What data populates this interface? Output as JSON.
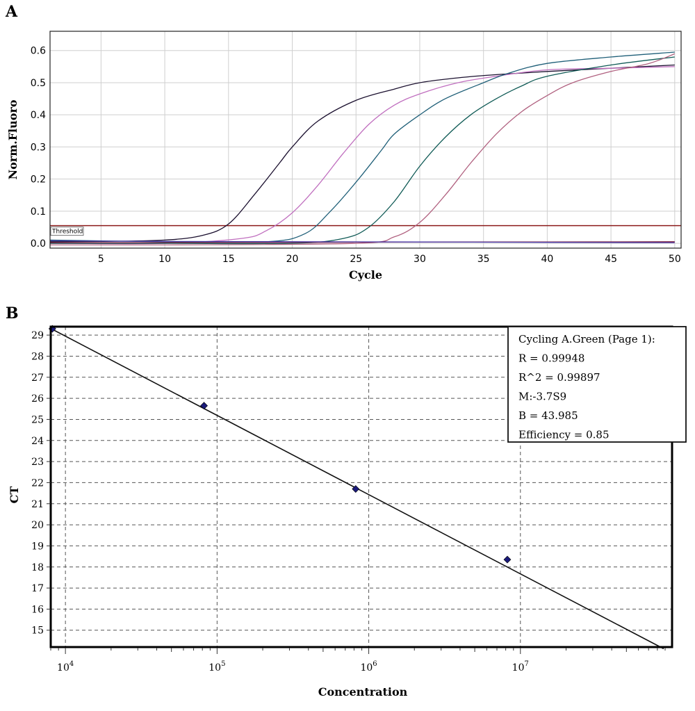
{
  "chart_data": [
    {
      "panel": "A",
      "type": "line",
      "xlabel": "Cycle",
      "ylabel": "Norm.Fluoro",
      "xlim": [
        1,
        50.5
      ],
      "ylim": [
        -0.015,
        0.66
      ],
      "xticks": [
        5,
        10,
        15,
        20,
        25,
        30,
        35,
        40,
        45,
        50
      ],
      "yticks": [
        0.0,
        0.1,
        0.2,
        0.3,
        0.4,
        0.5,
        0.6
      ],
      "ytick_labels": [
        "0.0",
        "0.1",
        "0.2",
        "0.3",
        "0.4",
        "0.5",
        "0.6"
      ],
      "grid": true,
      "threshold": {
        "label": "Threshold",
        "value": 0.055,
        "color": "#8b1a1a"
      },
      "series": [
        {
          "color": "#1a0f2e",
          "x": [
            1,
            5,
            10,
            13,
            15,
            17,
            19,
            20,
            22,
            25,
            28,
            30,
            33,
            36,
            40,
            45,
            50
          ],
          "y": [
            0.005,
            0.006,
            0.01,
            0.025,
            0.06,
            0.15,
            0.25,
            0.3,
            0.38,
            0.445,
            0.48,
            0.5,
            0.515,
            0.525,
            0.535,
            0.545,
            0.555
          ]
        },
        {
          "color": "#c06fbf",
          "x": [
            1,
            10,
            16,
            18,
            20,
            22,
            24,
            26,
            28,
            30,
            33,
            36,
            40,
            45,
            50
          ],
          "y": [
            0.0,
            0.0,
            0.015,
            0.04,
            0.095,
            0.18,
            0.28,
            0.37,
            0.43,
            0.465,
            0.5,
            0.52,
            0.54,
            0.545,
            0.55
          ]
        },
        {
          "color": "#1f5f78",
          "x": [
            1,
            10,
            18,
            21,
            23,
            25,
            27,
            28,
            30,
            32,
            35,
            37,
            40,
            45,
            50
          ],
          "y": [
            0.01,
            0.005,
            0.005,
            0.03,
            0.1,
            0.19,
            0.29,
            0.34,
            0.4,
            0.45,
            0.5,
            0.53,
            0.56,
            0.58,
            0.595
          ]
        },
        {
          "color": "#0f5a55",
          "x": [
            1,
            10,
            20,
            24,
            26,
            28,
            30,
            32,
            34,
            36,
            38,
            40,
            45,
            50
          ],
          "y": [
            0.0,
            0.0,
            0.0,
            0.015,
            0.05,
            0.13,
            0.24,
            0.33,
            0.4,
            0.45,
            0.49,
            0.52,
            0.555,
            0.58
          ]
        },
        {
          "color": "#b0607f",
          "x": [
            1,
            10,
            25,
            28,
            30,
            32,
            34,
            36,
            38,
            40,
            42,
            45,
            48,
            50
          ],
          "y": [
            -0.005,
            -0.005,
            0.0,
            0.02,
            0.065,
            0.15,
            0.25,
            0.34,
            0.41,
            0.46,
            0.5,
            0.535,
            0.56,
            0.59
          ]
        },
        {
          "color": "#7d1f3f",
          "x": [
            1,
            10,
            20,
            30,
            40,
            50
          ],
          "y": [
            0.002,
            0.002,
            0.003,
            0.004,
            0.004,
            0.005
          ]
        },
        {
          "color": "#4a3aa8",
          "x": [
            1,
            10,
            20,
            30,
            40,
            50
          ],
          "y": [
            0.008,
            0.006,
            0.005,
            0.004,
            0.003,
            0.002
          ]
        }
      ]
    },
    {
      "panel": "B",
      "type": "scatter",
      "xlabel": "Concentration",
      "ylabel": "CT",
      "xscale": "log",
      "xlim": [
        8000,
        100000000
      ],
      "ylim": [
        14.2,
        29.4
      ],
      "xticks": [
        10000,
        100000,
        1000000,
        10000000
      ],
      "xtick_labels": [
        {
          "base": "10",
          "exp": "4"
        },
        {
          "base": "10",
          "exp": "5"
        },
        {
          "base": "10",
          "exp": "6"
        },
        {
          "base": "10",
          "exp": "7"
        }
      ],
      "yticks": [
        15,
        16,
        17,
        18,
        19,
        20,
        21,
        22,
        23,
        24,
        25,
        26,
        27,
        28,
        29
      ],
      "grid": true,
      "points": [
        {
          "x": 8200,
          "y": 29.3
        },
        {
          "x": 82000,
          "y": 25.65
        },
        {
          "x": 820000,
          "y": 21.7
        },
        {
          "x": 8200000,
          "y": 18.35
        }
      ],
      "point_color": "#1a1a7a",
      "fit_line": {
        "slope": -3.759,
        "intercept": 43.985,
        "x_range": [
          8000,
          88000000
        ]
      },
      "stats_box": {
        "lines": [
          "Cycling A.Green (Page 1):",
          "R = 0.99948",
          "R^2 = 0.99897",
          "M:-3.7S9",
          "B = 43.985",
          "Efficiency = 0.85"
        ]
      }
    }
  ]
}
